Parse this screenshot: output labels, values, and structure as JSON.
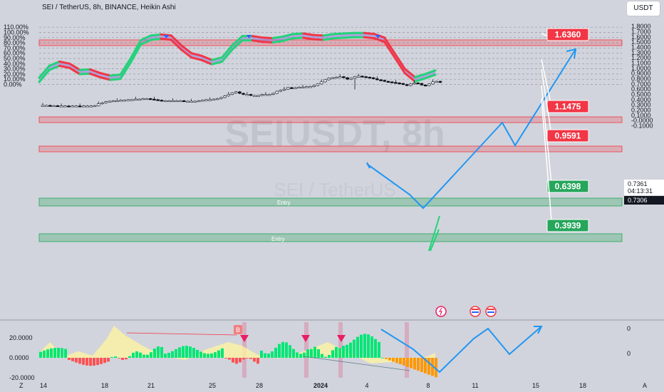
{
  "header": {
    "title": "SEI / TetherUS, 8h, BINANCE, Heikin Ashi",
    "currency": "USDT"
  },
  "watermark": {
    "symbol": "SEIUSDT, 8h",
    "name": "SEI / TetherUS"
  },
  "colors": {
    "background": "#d1d4dc",
    "bull_candle": "#ffffff",
    "bear_candle": "#000000",
    "wave_up": "#22d37a",
    "wave_down": "#f23645",
    "resistance_zone": "#f23645",
    "support_zone": "#26a65b",
    "projection": "#2196f3",
    "hist_up": "#00e676",
    "hist_down": "#ff5252",
    "hist_orange": "#ff9800",
    "signal_area": "#fff59d",
    "marker_magenta": "#e91e63",
    "marker_blue": "#2962ff"
  },
  "price_labels": [
    {
      "text": "1.6360",
      "kind": "resistance"
    },
    {
      "text": "1.1475",
      "kind": "resistance"
    },
    {
      "text": "0.9591",
      "kind": "resistance"
    },
    {
      "text": "0.6398",
      "kind": "support"
    },
    {
      "text": "0.3939",
      "kind": "support"
    }
  ],
  "zone_labels": [
    "Entry",
    "Entry"
  ],
  "current_price": {
    "upper": "0.7361",
    "countdown": "04:13:31",
    "last": "0.7306"
  },
  "left_axis_ticks": [
    "110.00%",
    "100.00%",
    "90.00%",
    "80.00%",
    "70.00%",
    "60.00%",
    "50.00%",
    "40.00%",
    "30.00%",
    "20.00%",
    "10.00%",
    "0.00%"
  ],
  "right_axis_ticks": [
    "1.8000",
    "1.7000",
    "1.6000",
    "1.5000",
    "1.4000",
    "1.3000",
    "1.2000",
    "1.1000",
    "1.0000",
    "0.9000",
    "0.8000",
    "0.7000",
    "0.6000",
    "0.5000",
    "0.4000",
    "0.3000",
    "0.2000",
    "0.1000",
    "-0.0000",
    "-0.1000"
  ],
  "x_axis_ticks": [
    "14",
    "18",
    "21",
    "25",
    "28",
    "2024",
    "4",
    "8",
    "11",
    "15",
    "18"
  ],
  "footer": {
    "left": "Z",
    "right": "A"
  },
  "osc_axis_ticks": [
    "20.0000",
    "0.0000",
    "-20.0000"
  ],
  "osc_right_ticks": [
    "0",
    "0"
  ],
  "osc_badge": "B",
  "chart_data": {
    "type": "candlestick",
    "title": "SEI / TetherUS, 8h, BINANCE, Heikin Ashi",
    "right_axis": {
      "ylim": [
        -0.13,
        1.83
      ],
      "unit": "USDT"
    },
    "left_axis": {
      "ylim": [
        -5,
        115
      ],
      "unit": "%"
    },
    "x_ticks": [
      "14",
      "18",
      "21",
      "25",
      "28",
      "2024",
      "4",
      "8",
      "11",
      "15",
      "18"
    ],
    "horizontal_zones": [
      {
        "level": 1.636,
        "label": "1.6360",
        "type": "resistance"
      },
      {
        "level": 1.1475,
        "label": "1.1475",
        "type": "resistance"
      },
      {
        "level": 0.9591,
        "label": "0.9591",
        "type": "resistance"
      },
      {
        "level": 0.6398,
        "label": "0.6398",
        "type": "support",
        "note": "Entry"
      },
      {
        "level": 0.3939,
        "label": "0.3939",
        "type": "support",
        "note": "Entry"
      }
    ],
    "candles_close": [
      0.29,
      0.29,
      0.285,
      0.285,
      0.28,
      0.28,
      0.28,
      0.275,
      0.28,
      0.28,
      0.275,
      0.28,
      0.28,
      0.28,
      0.285,
      0.32,
      0.34,
      0.36,
      0.37,
      0.38,
      0.38,
      0.39,
      0.39,
      0.4,
      0.4,
      0.41,
      0.41,
      0.42,
      0.42,
      0.41,
      0.4,
      0.39,
      0.38,
      0.38,
      0.38,
      0.38,
      0.38,
      0.38,
      0.37,
      0.37,
      0.37,
      0.37,
      0.38,
      0.39,
      0.4,
      0.4,
      0.41,
      0.42,
      0.44,
      0.47,
      0.5,
      0.53,
      0.55,
      0.52,
      0.5,
      0.5,
      0.48,
      0.48,
      0.48,
      0.5,
      0.5,
      0.5,
      0.52,
      0.56,
      0.58,
      0.6,
      0.63,
      0.62,
      0.63,
      0.64,
      0.64,
      0.65,
      0.65,
      0.67,
      0.7,
      0.74,
      0.78,
      0.81,
      0.82,
      0.83,
      0.84,
      0.82,
      0.79,
      0.81,
      0.84,
      0.85,
      0.84,
      0.83,
      0.82,
      0.8,
      0.78,
      0.77,
      0.75,
      0.74,
      0.73,
      0.72,
      0.71,
      0.69,
      0.67,
      0.7,
      0.72,
      0.71,
      0.68,
      0.67,
      0.7,
      0.74,
      0.75,
      0.7306
    ],
    "wave_series_pct": [
      13,
      36,
      44,
      40,
      28,
      29,
      22,
      17,
      19,
      50,
      85,
      94,
      96,
      94,
      75,
      60,
      55,
      47,
      52,
      75,
      93,
      93,
      90,
      89,
      92,
      97,
      98,
      95,
      94,
      97,
      98,
      99,
      99,
      97,
      90,
      60,
      30,
      14,
      20,
      27
    ]
  }
}
